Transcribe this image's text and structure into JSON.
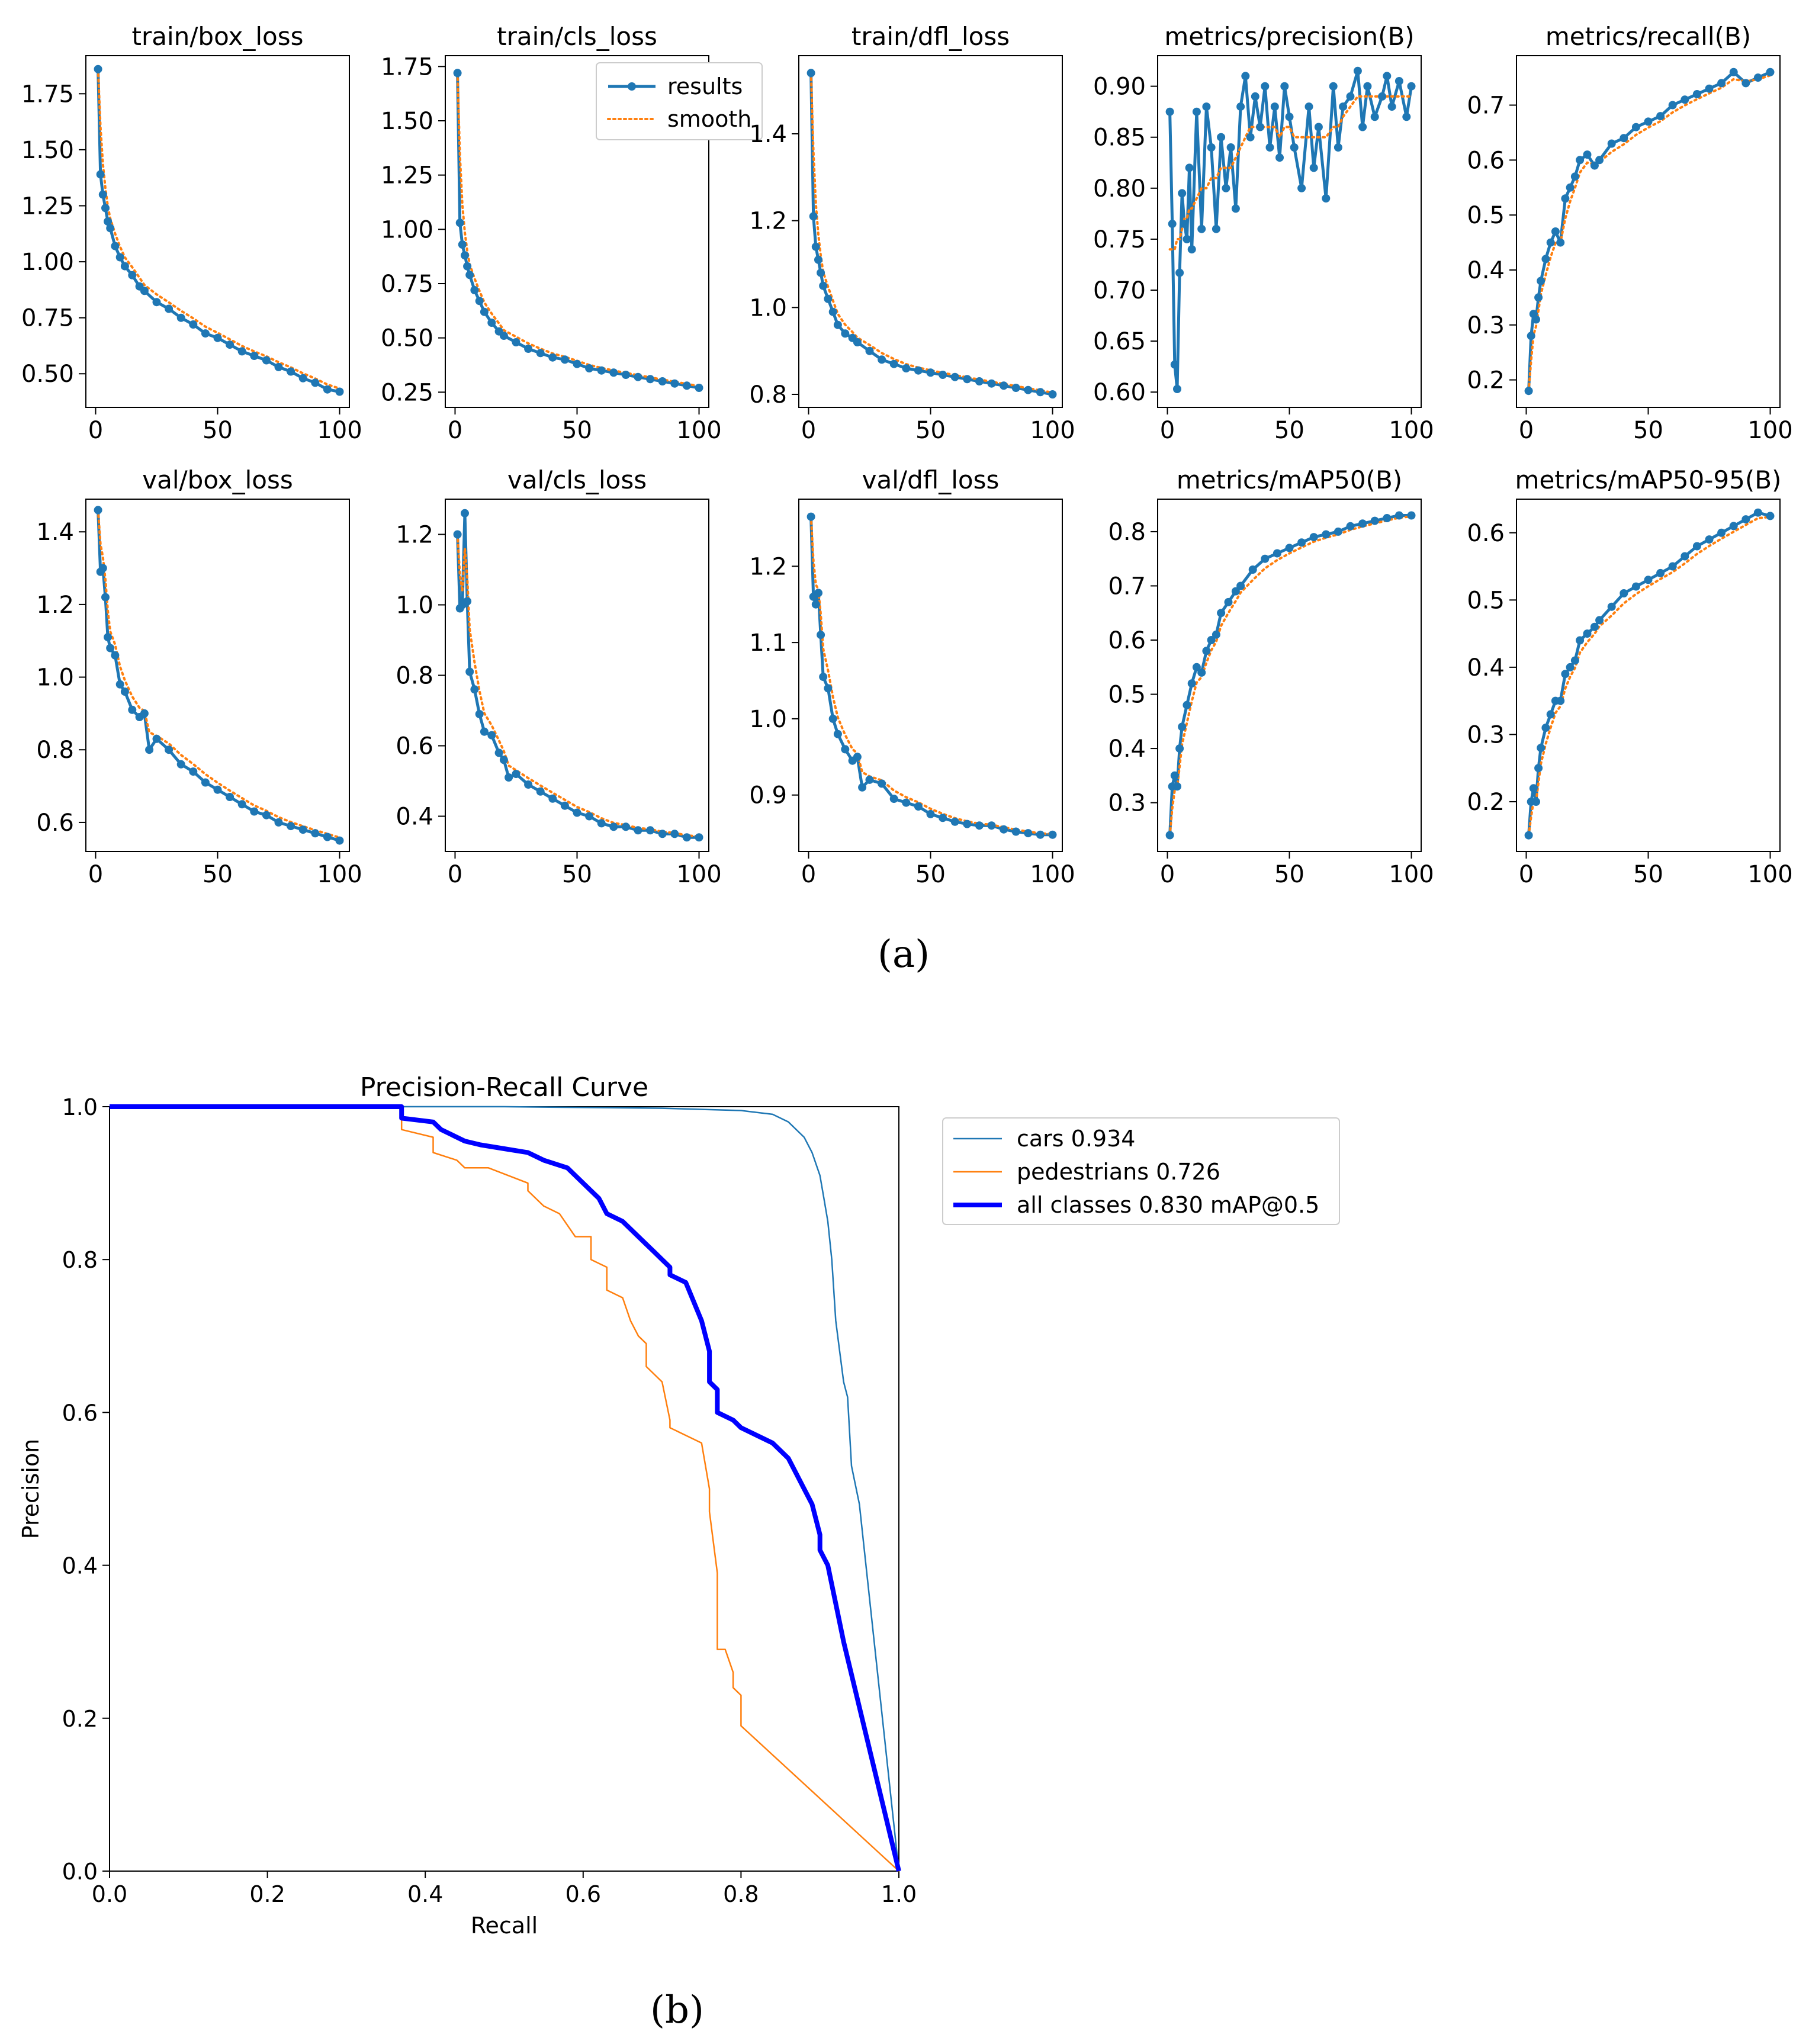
{
  "panels": {
    "a_label": "(a)",
    "b_label": "(b)"
  },
  "colors": {
    "results": "#1f77b4",
    "smooth": "#ff7f0e",
    "cars": "#1f77b4",
    "pedestrians": "#ff7f0e",
    "all_classes": "#0000ff"
  },
  "chart_data": [
    {
      "type": "line",
      "title": "train/box_loss",
      "xlim": [
        -4,
        104
      ],
      "ylim": [
        0.35,
        1.92
      ],
      "xticks": [
        0,
        50,
        100
      ],
      "yticks": [
        0.5,
        0.75,
        1.0,
        1.25,
        1.5,
        1.75
      ],
      "ydecimals": 2,
      "series": [
        {
          "name": "results",
          "style": "results"
        },
        {
          "name": "smooth",
          "style": "smooth"
        }
      ],
      "x": [
        1,
        2,
        3,
        4,
        5,
        6,
        8,
        10,
        12,
        15,
        18,
        20,
        25,
        30,
        35,
        40,
        45,
        50,
        55,
        60,
        65,
        70,
        75,
        80,
        85,
        90,
        95,
        100
      ],
      "values": [
        1.86,
        1.39,
        1.3,
        1.24,
        1.18,
        1.15,
        1.07,
        1.02,
        0.98,
        0.94,
        0.89,
        0.87,
        0.82,
        0.79,
        0.75,
        0.72,
        0.68,
        0.66,
        0.63,
        0.6,
        0.58,
        0.56,
        0.53,
        0.51,
        0.48,
        0.46,
        0.43,
        0.42
      ],
      "legend": false
    },
    {
      "type": "line",
      "title": "train/cls_loss",
      "xlim": [
        -4,
        104
      ],
      "ylim": [
        0.18,
        1.8
      ],
      "xticks": [
        0,
        50,
        100
      ],
      "yticks": [
        0.25,
        0.5,
        0.75,
        1.0,
        1.25,
        1.5,
        1.75
      ],
      "ydecimals": 2,
      "series": [
        {
          "name": "results",
          "style": "results"
        },
        {
          "name": "smooth",
          "style": "smooth"
        }
      ],
      "x": [
        1,
        2,
        3,
        4,
        5,
        6,
        8,
        10,
        12,
        15,
        18,
        20,
        25,
        30,
        35,
        40,
        45,
        50,
        55,
        60,
        65,
        70,
        75,
        80,
        85,
        90,
        95,
        100
      ],
      "values": [
        1.72,
        1.03,
        0.93,
        0.88,
        0.83,
        0.79,
        0.72,
        0.67,
        0.62,
        0.57,
        0.53,
        0.51,
        0.48,
        0.45,
        0.43,
        0.41,
        0.4,
        0.38,
        0.36,
        0.35,
        0.34,
        0.33,
        0.32,
        0.31,
        0.3,
        0.29,
        0.28,
        0.27
      ],
      "legend": true
    },
    {
      "type": "line",
      "title": "train/dfl_loss",
      "xlim": [
        -4,
        104
      ],
      "ylim": [
        0.77,
        1.58
      ],
      "xticks": [
        0,
        50,
        100
      ],
      "yticks": [
        0.8,
        1.0,
        1.2,
        1.4
      ],
      "ydecimals": 1,
      "series": [
        {
          "name": "results",
          "style": "results"
        },
        {
          "name": "smooth",
          "style": "smooth"
        }
      ],
      "x": [
        1,
        2,
        3,
        4,
        5,
        6,
        8,
        10,
        12,
        15,
        18,
        20,
        25,
        30,
        35,
        40,
        45,
        50,
        55,
        60,
        65,
        70,
        75,
        80,
        85,
        90,
        95,
        100
      ],
      "values": [
        1.54,
        1.21,
        1.14,
        1.11,
        1.08,
        1.05,
        1.02,
        0.99,
        0.96,
        0.94,
        0.93,
        0.92,
        0.9,
        0.88,
        0.87,
        0.86,
        0.855,
        0.85,
        0.845,
        0.84,
        0.835,
        0.83,
        0.825,
        0.82,
        0.815,
        0.81,
        0.805,
        0.8
      ],
      "legend": false
    },
    {
      "type": "line",
      "title": "metrics/precision(B)",
      "xlim": [
        -4,
        104
      ],
      "ylim": [
        0.585,
        0.93
      ],
      "xticks": [
        0,
        50,
        100
      ],
      "yticks": [
        0.6,
        0.65,
        0.7,
        0.75,
        0.8,
        0.85,
        0.9
      ],
      "ydecimals": 2,
      "series": [
        {
          "name": "results",
          "style": "results"
        },
        {
          "name": "smooth",
          "style": "smooth"
        }
      ],
      "x": [
        1,
        2,
        3,
        4,
        5,
        6,
        7,
        8,
        9,
        10,
        12,
        14,
        16,
        18,
        20,
        22,
        24,
        26,
        28,
        30,
        32,
        34,
        36,
        38,
        40,
        42,
        44,
        46,
        48,
        50,
        52,
        55,
        58,
        60,
        62,
        65,
        68,
        70,
        72,
        75,
        78,
        80,
        82,
        85,
        88,
        90,
        92,
        95,
        98,
        100
      ],
      "values": [
        0.875,
        0.765,
        0.627,
        0.603,
        0.717,
        0.795,
        0.765,
        0.75,
        0.82,
        0.74,
        0.875,
        0.76,
        0.88,
        0.84,
        0.76,
        0.85,
        0.8,
        0.84,
        0.78,
        0.88,
        0.91,
        0.85,
        0.89,
        0.86,
        0.9,
        0.84,
        0.88,
        0.83,
        0.9,
        0.87,
        0.84,
        0.8,
        0.88,
        0.82,
        0.86,
        0.79,
        0.9,
        0.84,
        0.88,
        0.89,
        0.915,
        0.86,
        0.9,
        0.87,
        0.89,
        0.91,
        0.88,
        0.905,
        0.87,
        0.9
      ],
      "smooth": [
        0.74,
        0.74,
        0.74,
        0.75,
        0.75,
        0.76,
        0.77,
        0.77,
        0.78,
        0.78,
        0.79,
        0.8,
        0.8,
        0.81,
        0.81,
        0.82,
        0.82,
        0.82,
        0.83,
        0.84,
        0.85,
        0.86,
        0.86,
        0.86,
        0.86,
        0.86,
        0.86,
        0.85,
        0.86,
        0.86,
        0.85,
        0.85,
        0.85,
        0.85,
        0.85,
        0.85,
        0.86,
        0.86,
        0.87,
        0.88,
        0.89,
        0.89,
        0.89,
        0.89,
        0.89,
        0.89,
        0.89,
        0.89,
        0.89,
        0.89
      ],
      "legend": false
    },
    {
      "type": "line",
      "title": "metrics/recall(B)",
      "xlim": [
        -4,
        104
      ],
      "ylim": [
        0.15,
        0.79
      ],
      "xticks": [
        0,
        50,
        100
      ],
      "yticks": [
        0.2,
        0.3,
        0.4,
        0.5,
        0.6,
        0.7
      ],
      "ydecimals": 1,
      "series": [
        {
          "name": "results",
          "style": "results"
        },
        {
          "name": "smooth",
          "style": "smooth"
        }
      ],
      "x": [
        1,
        2,
        3,
        4,
        5,
        6,
        8,
        10,
        12,
        14,
        16,
        18,
        20,
        22,
        25,
        28,
        30,
        35,
        40,
        45,
        50,
        55,
        60,
        65,
        70,
        75,
        80,
        85,
        90,
        95,
        100
      ],
      "values": [
        0.18,
        0.28,
        0.32,
        0.31,
        0.35,
        0.38,
        0.42,
        0.45,
        0.47,
        0.45,
        0.53,
        0.55,
        0.57,
        0.6,
        0.61,
        0.59,
        0.6,
        0.63,
        0.64,
        0.66,
        0.67,
        0.68,
        0.7,
        0.71,
        0.72,
        0.73,
        0.74,
        0.76,
        0.74,
        0.75,
        0.76
      ],
      "legend": false
    },
    {
      "type": "line",
      "title": "val/box_loss",
      "xlim": [
        -4,
        104
      ],
      "ylim": [
        0.52,
        1.49
      ],
      "xticks": [
        0,
        50,
        100
      ],
      "yticks": [
        0.6,
        0.8,
        1.0,
        1.2,
        1.4
      ],
      "ydecimals": 1,
      "series": [
        {
          "name": "results",
          "style": "results"
        },
        {
          "name": "smooth",
          "style": "smooth"
        }
      ],
      "x": [
        1,
        2,
        3,
        4,
        5,
        6,
        8,
        10,
        12,
        15,
        18,
        20,
        22,
        25,
        30,
        35,
        40,
        45,
        50,
        55,
        60,
        65,
        70,
        75,
        80,
        85,
        90,
        95,
        100
      ],
      "values": [
        1.46,
        1.29,
        1.3,
        1.22,
        1.11,
        1.08,
        1.06,
        0.98,
        0.96,
        0.91,
        0.89,
        0.9,
        0.8,
        0.83,
        0.8,
        0.76,
        0.74,
        0.71,
        0.69,
        0.67,
        0.65,
        0.63,
        0.62,
        0.6,
        0.59,
        0.58,
        0.57,
        0.56,
        0.55
      ],
      "legend": false
    },
    {
      "type": "line",
      "title": "val/cls_loss",
      "xlim": [
        -4,
        104
      ],
      "ylim": [
        0.3,
        1.3
      ],
      "xticks": [
        0,
        50,
        100
      ],
      "yticks": [
        0.4,
        0.6,
        0.8,
        1.0,
        1.2
      ],
      "ydecimals": 1,
      "series": [
        {
          "name": "results",
          "style": "results"
        },
        {
          "name": "smooth",
          "style": "smooth"
        }
      ],
      "x": [
        1,
        2,
        3,
        4,
        5,
        6,
        8,
        10,
        12,
        15,
        18,
        20,
        22,
        25,
        30,
        35,
        40,
        45,
        50,
        55,
        60,
        65,
        70,
        75,
        80,
        85,
        90,
        95,
        100
      ],
      "values": [
        1.2,
        0.99,
        1.0,
        1.26,
        1.01,
        0.81,
        0.76,
        0.69,
        0.64,
        0.63,
        0.58,
        0.56,
        0.51,
        0.52,
        0.49,
        0.47,
        0.45,
        0.43,
        0.41,
        0.4,
        0.38,
        0.37,
        0.37,
        0.36,
        0.36,
        0.35,
        0.35,
        0.34,
        0.34
      ],
      "legend": false
    },
    {
      "type": "line",
      "title": "val/dfl_loss",
      "xlim": [
        -4,
        104
      ],
      "ylim": [
        0.826,
        1.288
      ],
      "xticks": [
        0,
        50,
        100
      ],
      "yticks": [
        0.9,
        1.0,
        1.1,
        1.2
      ],
      "ydecimals": 1,
      "series": [
        {
          "name": "results",
          "style": "results"
        },
        {
          "name": "smooth",
          "style": "smooth"
        }
      ],
      "x": [
        1,
        2,
        3,
        4,
        5,
        6,
        8,
        10,
        12,
        15,
        18,
        20,
        22,
        25,
        30,
        35,
        40,
        45,
        50,
        55,
        60,
        65,
        70,
        75,
        80,
        85,
        90,
        95,
        100
      ],
      "values": [
        1.265,
        1.16,
        1.15,
        1.165,
        1.11,
        1.055,
        1.04,
        1.0,
        0.98,
        0.96,
        0.945,
        0.95,
        0.91,
        0.92,
        0.915,
        0.895,
        0.89,
        0.885,
        0.875,
        0.87,
        0.865,
        0.862,
        0.86,
        0.86,
        0.855,
        0.852,
        0.85,
        0.848,
        0.848
      ],
      "legend": false
    },
    {
      "type": "line",
      "title": "metrics/mAP50(B)",
      "xlim": [
        -4,
        104
      ],
      "ylim": [
        0.21,
        0.86
      ],
      "xticks": [
        0,
        50,
        100
      ],
      "yticks": [
        0.3,
        0.4,
        0.5,
        0.6,
        0.7,
        0.8
      ],
      "ydecimals": 1,
      "series": [
        {
          "name": "results",
          "style": "results"
        },
        {
          "name": "smooth",
          "style": "smooth"
        }
      ],
      "x": [
        1,
        2,
        3,
        4,
        5,
        6,
        8,
        10,
        12,
        14,
        16,
        18,
        20,
        22,
        25,
        28,
        30,
        35,
        40,
        45,
        50,
        55,
        60,
        65,
        70,
        75,
        80,
        85,
        90,
        95,
        100
      ],
      "values": [
        0.24,
        0.33,
        0.35,
        0.33,
        0.4,
        0.44,
        0.48,
        0.52,
        0.55,
        0.54,
        0.58,
        0.6,
        0.61,
        0.65,
        0.67,
        0.69,
        0.7,
        0.73,
        0.75,
        0.76,
        0.77,
        0.78,
        0.79,
        0.795,
        0.8,
        0.81,
        0.815,
        0.82,
        0.825,
        0.83,
        0.83
      ],
      "legend": false
    },
    {
      "type": "line",
      "title": "metrics/mAP50-95(B)",
      "xlim": [
        -4,
        104
      ],
      "ylim": [
        0.126,
        0.65
      ],
      "xticks": [
        0,
        50,
        100
      ],
      "yticks": [
        0.2,
        0.3,
        0.4,
        0.5,
        0.6
      ],
      "ydecimals": 1,
      "series": [
        {
          "name": "results",
          "style": "results"
        },
        {
          "name": "smooth",
          "style": "smooth"
        }
      ],
      "x": [
        1,
        2,
        3,
        4,
        5,
        6,
        8,
        10,
        12,
        14,
        16,
        18,
        20,
        22,
        25,
        28,
        30,
        35,
        40,
        45,
        50,
        55,
        60,
        65,
        70,
        75,
        80,
        85,
        90,
        95,
        100
      ],
      "values": [
        0.15,
        0.2,
        0.22,
        0.2,
        0.25,
        0.28,
        0.31,
        0.33,
        0.35,
        0.35,
        0.39,
        0.4,
        0.41,
        0.44,
        0.45,
        0.46,
        0.47,
        0.49,
        0.51,
        0.52,
        0.53,
        0.54,
        0.55,
        0.565,
        0.58,
        0.59,
        0.6,
        0.61,
        0.62,
        0.63,
        0.625
      ],
      "legend": false
    },
    {
      "type": "line",
      "title": "Precision-Recall Curve",
      "xlabel": "Recall",
      "ylabel": "Precision",
      "xlim": [
        0,
        1
      ],
      "ylim": [
        0,
        1
      ],
      "xticks": [
        0.0,
        0.2,
        0.4,
        0.6,
        0.8,
        1.0
      ],
      "yticks": [
        0.0,
        0.2,
        0.4,
        0.6,
        0.8,
        1.0
      ],
      "ydecimals": 1,
      "series": [
        {
          "name": "cars 0.934",
          "style": "cars",
          "x": [
            0.0,
            0.5,
            0.7,
            0.8,
            0.84,
            0.86,
            0.88,
            0.89,
            0.9,
            0.905,
            0.91,
            0.915,
            0.92,
            0.925,
            0.93,
            0.935,
            0.94,
            0.95,
            1.0
          ],
          "y": [
            1.0,
            1.0,
            0.998,
            0.995,
            0.99,
            0.98,
            0.96,
            0.94,
            0.91,
            0.88,
            0.85,
            0.8,
            0.72,
            0.68,
            0.64,
            0.62,
            0.53,
            0.48,
            0.0
          ]
        },
        {
          "name": "pedestrians 0.726",
          "style": "pedestrians",
          "x": [
            0.0,
            0.37,
            0.37,
            0.41,
            0.41,
            0.44,
            0.45,
            0.48,
            0.53,
            0.53,
            0.55,
            0.57,
            0.59,
            0.61,
            0.61,
            0.63,
            0.63,
            0.65,
            0.66,
            0.67,
            0.68,
            0.68,
            0.7,
            0.71,
            0.71,
            0.73,
            0.75,
            0.76,
            0.76,
            0.77,
            0.77,
            0.78,
            0.79,
            0.79,
            0.8,
            0.8,
            1.0
          ],
          "y": [
            1.0,
            1.0,
            0.97,
            0.96,
            0.94,
            0.93,
            0.92,
            0.92,
            0.9,
            0.89,
            0.87,
            0.86,
            0.83,
            0.83,
            0.8,
            0.79,
            0.76,
            0.75,
            0.72,
            0.7,
            0.69,
            0.66,
            0.64,
            0.59,
            0.58,
            0.57,
            0.56,
            0.5,
            0.47,
            0.39,
            0.29,
            0.29,
            0.26,
            0.24,
            0.23,
            0.19,
            0.0
          ]
        },
        {
          "name": "all classes 0.830 mAP@0.5",
          "style": "all",
          "x": [
            0.0,
            0.37,
            0.37,
            0.41,
            0.42,
            0.44,
            0.45,
            0.47,
            0.5,
            0.53,
            0.55,
            0.58,
            0.6,
            0.61,
            0.62,
            0.63,
            0.65,
            0.66,
            0.67,
            0.68,
            0.69,
            0.7,
            0.71,
            0.71,
            0.73,
            0.75,
            0.76,
            0.76,
            0.77,
            0.77,
            0.79,
            0.8,
            0.82,
            0.84,
            0.86,
            0.87,
            0.88,
            0.89,
            0.9,
            0.9,
            0.91,
            0.92,
            0.93,
            1.0
          ],
          "y": [
            1.0,
            1.0,
            0.985,
            0.98,
            0.97,
            0.96,
            0.955,
            0.95,
            0.945,
            0.94,
            0.93,
            0.92,
            0.9,
            0.89,
            0.88,
            0.86,
            0.85,
            0.84,
            0.83,
            0.82,
            0.81,
            0.8,
            0.79,
            0.78,
            0.77,
            0.72,
            0.68,
            0.64,
            0.63,
            0.6,
            0.59,
            0.58,
            0.57,
            0.56,
            0.54,
            0.52,
            0.5,
            0.48,
            0.44,
            0.42,
            0.4,
            0.35,
            0.3,
            0.0
          ]
        }
      ],
      "legend": true
    }
  ]
}
